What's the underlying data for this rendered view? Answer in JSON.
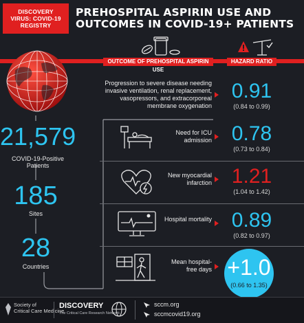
{
  "header": {
    "badge_line1": "DISCOVERY",
    "badge_line2": "VIRUS: COVID-19",
    "badge_line3": "REGISTRY",
    "title_line1": "PREHOSPITAL ASPIRIN USE AND",
    "title_line2": "OUTCOMES IN COVID-19+ PATIENTS"
  },
  "columns": {
    "outcome": "OUTCOME OF PREHOSPITAL ASPIRIN USE",
    "hazard": "HAZARD RATIO"
  },
  "stats": [
    {
      "value": "21,579",
      "label": "COVID-19-Positive Patients"
    },
    {
      "value": "185",
      "label": "Sites"
    },
    {
      "value": "28",
      "label": "Countries"
    }
  ],
  "rows": [
    {
      "outcome": "Progression to severe disease needing invasive ventilation, renal replacement, vasopressors, and extracorporeal membrane oxygenation",
      "hr": "0.91",
      "ci": "(0.84 to 0.99)",
      "color": "#2ec4f0",
      "icon": "none"
    },
    {
      "outcome": "Need for ICU admission",
      "hr": "0.78",
      "ci": "(0.73 to 0.84)",
      "color": "#2ec4f0",
      "icon": "icu-bed-icon"
    },
    {
      "outcome": "New myocardial infarction",
      "hr": "1.21",
      "ci": "(1.04 to 1.42)",
      "color": "#e02020",
      "icon": "heart-icon"
    },
    {
      "outcome": "Hospital mortality",
      "hr": "0.89",
      "ci": "(0.82 to 0.97)",
      "color": "#2ec4f0",
      "icon": "monitor-icon"
    },
    {
      "outcome": "Mean hospital-free days",
      "hr": "+1.0",
      "ci": "(0.66 to 1.35)",
      "color": "#ffffff",
      "icon": "walking-exit-icon"
    }
  ],
  "footer": {
    "sccm_line1": "Society of",
    "sccm_line2": "Critical Care Medicine",
    "discovery": "DISCOVERY",
    "discovery_sub": "The Critical Care Research Network",
    "url1": "sccm.org",
    "url2": "sccmcovid19.org"
  },
  "colors": {
    "accent": "#e02020",
    "blue": "#2ec4f0",
    "background": "#1c1e24"
  }
}
